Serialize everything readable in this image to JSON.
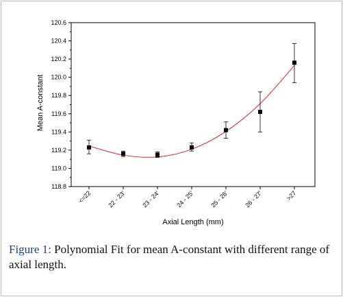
{
  "chart_data": {
    "type": "scatter",
    "title": "",
    "xlabel": "Axial Length (mm)",
    "ylabel": "Mean A-constant",
    "categories": [
      "<=22",
      "22 - 23'",
      "23 - 24'",
      "24 - 25'",
      "25 - 26'",
      "26 - 27'",
      ">27"
    ],
    "ylim": [
      118.8,
      120.6
    ],
    "yticks": [
      "118.8",
      "119.0",
      "119.2",
      "119.4",
      "119.6",
      "119.8",
      "120.0",
      "120.2",
      "120.4",
      "120.6"
    ],
    "series": [
      {
        "values": [
          119.23,
          119.16,
          119.15,
          119.23,
          119.42,
          119.62,
          120.16
        ],
        "error_low": [
          119.16,
          119.13,
          119.12,
          119.19,
          119.33,
          119.4,
          119.94
        ],
        "error_high": [
          119.31,
          119.19,
          119.18,
          119.28,
          119.51,
          119.84,
          120.37
        ],
        "marker_color": "#000000"
      }
    ],
    "fit": {
      "kind": "polynomial",
      "color": "#e0231e",
      "values": [
        119.245,
        119.145,
        119.125,
        119.21,
        119.405,
        119.71,
        120.13
      ]
    },
    "grid": false
  },
  "caption": {
    "label": "Figure 1:",
    "text": "Polynomial Fit for mean A-constant with different range of axial length."
  }
}
